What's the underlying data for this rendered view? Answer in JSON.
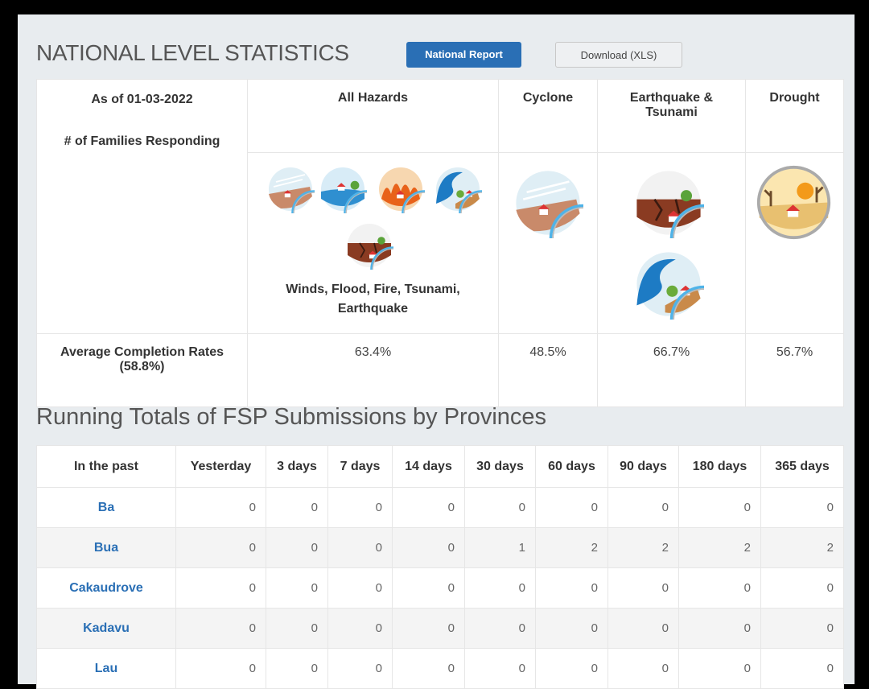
{
  "header": {
    "title": "NATIONAL LEVEL STATISTICS",
    "buttons": [
      "National Report",
      "Download (XLS)"
    ]
  },
  "hazard_table": {
    "as_of": "As of 01-03-2022",
    "families_label": "# of Families Responding",
    "columns": [
      "All Hazards",
      "Cyclone",
      "Earthquake & Tsunami",
      "Drought"
    ],
    "all_hazards_caption": "Winds, Flood, Fire, Tsunami, Earthquake",
    "completion_label": "Average Completion Rates (58.8%)",
    "completion_rates": [
      "63.4%",
      "48.5%",
      "66.7%",
      "56.7%"
    ]
  },
  "totals_table": {
    "title": "Running Totals of FSP Submissions by Provinces",
    "columns": [
      "In the past",
      "Yesterday",
      "3 days",
      "7 days",
      "14 days",
      "30 days",
      "60 days",
      "90 days",
      "180 days",
      "365 days"
    ],
    "rows": [
      [
        "Ba",
        0,
        0,
        0,
        0,
        0,
        0,
        0,
        0,
        0
      ],
      [
        "Bua",
        0,
        0,
        0,
        0,
        1,
        2,
        2,
        2,
        2
      ],
      [
        "Cakaudrove",
        0,
        0,
        0,
        0,
        0,
        0,
        0,
        0,
        0
      ],
      [
        "Kadavu",
        0,
        0,
        0,
        0,
        0,
        0,
        0,
        0,
        0
      ],
      [
        "Lau",
        0,
        0,
        0,
        0,
        0,
        0,
        0,
        0,
        0
      ]
    ]
  }
}
